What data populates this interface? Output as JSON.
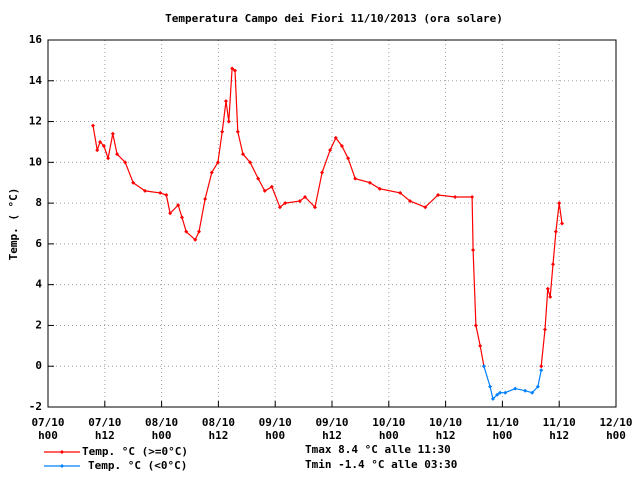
{
  "chart_data": {
    "type": "line",
    "title": "Temperatura Campo dei Fiori 11/10/2013 (ora solare)",
    "y_label": "Temp. ( °C)",
    "annotations": [
      "Tmax 8.4 °C alle 11:30",
      "Tmin -1.4 °C alle 03:30"
    ],
    "x": [
      9.5,
      10.4,
      11,
      11.8,
      12.7,
      13.7,
      14.6,
      16.3,
      18,
      20.5,
      23.7,
      25,
      25.8,
      27.5,
      28.3,
      29.2,
      31.1,
      31.9,
      33.2,
      34.6,
      35.9,
      36.8,
      37.6,
      38.2,
      38.9,
      39.5,
      40.1,
      41.2,
      42.7,
      44.4,
      45.8,
      47.3,
      49,
      50.1,
      53.2,
      54.3,
      56.4,
      57.9,
      59.6,
      60.8,
      62.1,
      63.4,
      64.9,
      68,
      70.1,
      74.4,
      76.5,
      79.7,
      82.4,
      86,
      89.6,
      89.8,
      90.4,
      91.3,
      92.1,
      93.4,
      94,
      94.9,
      95.5,
      96.6,
      98.7,
      100.8,
      102.3,
      103.5,
      104.2,
      105,
      105.6,
      106.1,
      106.7,
      107.3,
      108,
      108.6
    ],
    "series": [
      {
        "name": "Temp. °C (>=0°C)",
        "color": "#ff0000",
        "values": [
          11.8,
          10.6,
          11,
          10.8,
          10.2,
          11.4,
          10.4,
          10,
          9,
          8.6,
          8.5,
          8.4,
          7.5,
          7.9,
          7.3,
          6.6,
          6.2,
          6.6,
          8.2,
          9.5,
          10,
          11.5,
          13,
          12,
          14.6,
          14.5,
          11.5,
          10.4,
          10,
          9.2,
          8.6,
          8.8,
          7.8,
          8,
          8.1,
          8.3,
          7.8,
          9.5,
          10.6,
          11.2,
          10.8,
          10.2,
          9.2,
          9,
          8.7,
          8.5,
          8.1,
          7.8,
          8.4,
          8.3,
          8.3,
          5.7,
          2,
          1,
          0,
          null,
          null,
          null,
          null,
          null,
          null,
          null,
          null,
          null,
          0,
          1.8,
          3.8,
          3.4,
          5,
          6.6,
          8,
          7
        ]
      },
      {
        "name": "Temp. °C (<0°C)",
        "color": "#0080ff",
        "values": [
          null,
          null,
          null,
          null,
          null,
          null,
          null,
          null,
          null,
          null,
          null,
          null,
          null,
          null,
          null,
          null,
          null,
          null,
          null,
          null,
          null,
          null,
          null,
          null,
          null,
          null,
          null,
          null,
          null,
          null,
          null,
          null,
          null,
          null,
          null,
          null,
          null,
          null,
          null,
          null,
          null,
          null,
          null,
          null,
          null,
          null,
          null,
          null,
          null,
          null,
          null,
          null,
          null,
          null,
          0,
          -1,
          -1.6,
          -1.4,
          -1.3,
          -1.3,
          -1.1,
          -1.2,
          -1.3,
          -1,
          -0.2,
          null,
          null,
          null,
          null,
          null,
          null,
          null
        ]
      }
    ],
    "xlim": [
      0,
      120
    ],
    "xticks": [
      {
        "value": 0,
        "label": "07/10\nh00"
      },
      {
        "value": 12,
        "label": "07/10\nh12"
      },
      {
        "value": 24,
        "label": "08/10\nh00"
      },
      {
        "value": 36,
        "label": "08/10\nh12"
      },
      {
        "value": 48,
        "label": "09/10\nh00"
      },
      {
        "value": 60,
        "label": "09/10\nh12"
      },
      {
        "value": 72,
        "label": "10/10\nh00"
      },
      {
        "value": 84,
        "label": "10/10\nh12"
      },
      {
        "value": 96,
        "label": "11/10\nh00"
      },
      {
        "value": 108,
        "label": "11/10\nh12"
      },
      {
        "value": 120,
        "label": "12/10\nh00"
      }
    ],
    "ylim": [
      -2,
      16
    ],
    "yticks": [
      -2,
      0,
      2,
      4,
      6,
      8,
      10,
      12,
      14,
      16
    ],
    "grid": true
  }
}
